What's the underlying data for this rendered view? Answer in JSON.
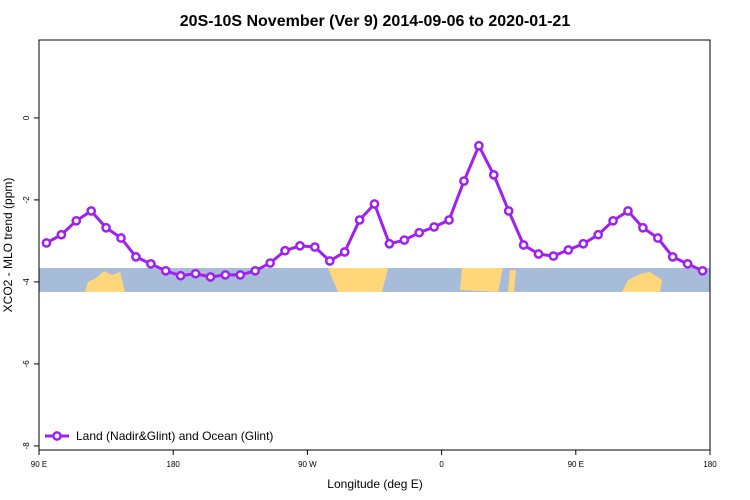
{
  "chart_data": {
    "type": "line",
    "title": "20S-10S November (Ver 9)   2014-09-06 to 2020-01-21",
    "x_label": "Longitude (deg E)",
    "y_label": "XCO2 - MLO trend (ppm)",
    "xlim": [
      90,
      540
    ],
    "xticks": [
      {
        "value": 90,
        "label": "90 E"
      },
      180,
      {
        "value": 270,
        "label": "90 W"
      },
      {
        "value": 360,
        "label": "0"
      },
      {
        "value": 450,
        "label": "90 E"
      },
      {
        "value": 540,
        "label": "180"
      }
    ],
    "ylim": [
      -8.1,
      1.9
    ],
    "yticks": [
      -8,
      -6,
      -4,
      -2,
      0
    ],
    "legend_position": "bottom-left",
    "x": [
      95,
      105,
      115,
      125,
      135,
      145,
      155,
      165,
      175,
      185,
      195,
      205,
      215,
      225,
      235,
      245,
      255,
      265,
      275,
      285,
      295,
      305,
      315,
      325,
      335,
      345,
      355,
      365,
      375,
      385,
      395,
      405,
      415,
      425,
      435,
      445,
      455,
      465,
      475,
      485,
      495,
      505,
      515,
      525,
      535
    ],
    "series": [
      {
        "name": "Land (Nadir&Glint) and Ocean (Glint)",
        "color": "#a020f0",
        "values": [
          -3.05,
          -2.85,
          -2.51,
          -2.27,
          -2.68,
          -2.93,
          -3.39,
          -3.56,
          -3.73,
          -3.85,
          -3.8,
          -3.88,
          -3.83,
          -3.83,
          -3.73,
          -3.54,
          -3.24,
          -3.12,
          -3.15,
          -3.49,
          -3.27,
          -2.49,
          -2.1,
          -3.07,
          -2.98,
          -2.8,
          -2.66,
          -2.49,
          -1.54,
          -0.68,
          -1.39,
          -2.27,
          -3.1,
          -3.32,
          -3.37,
          -3.22,
          -3.07,
          -2.85,
          -2.51,
          -2.27,
          -2.68,
          -2.93,
          -3.39,
          -3.56,
          -3.73
        ]
      }
    ]
  }
}
